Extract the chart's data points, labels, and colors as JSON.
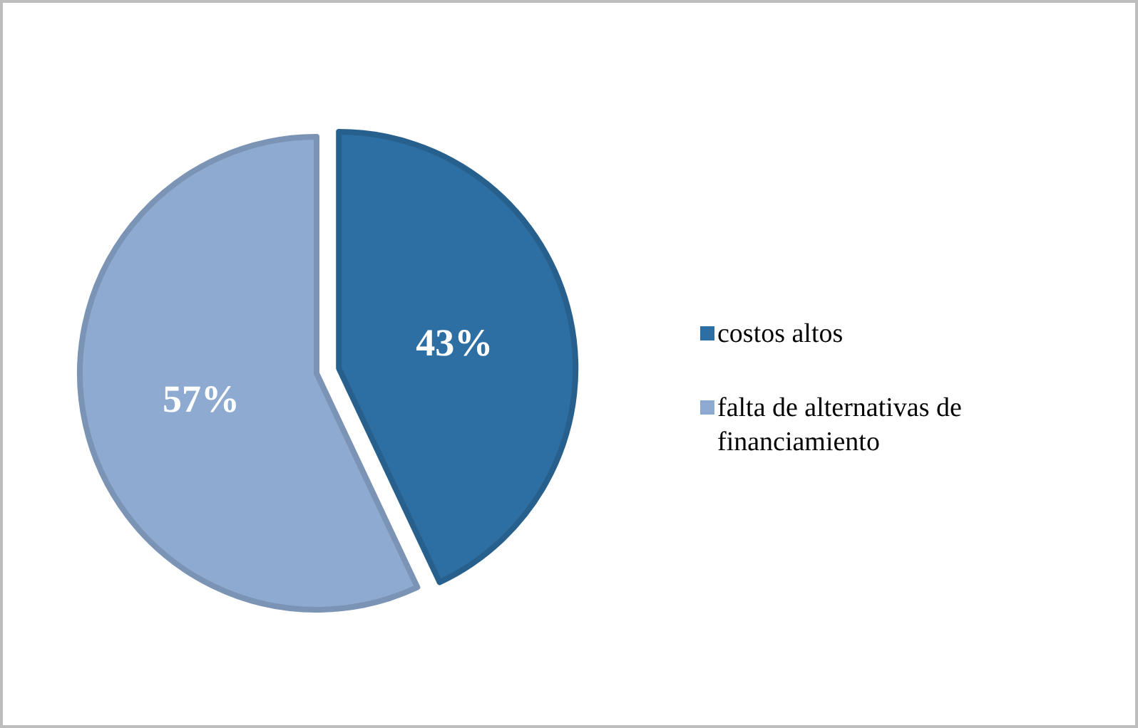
{
  "chart_data": {
    "type": "pie",
    "categories": [
      "costos altos",
      "falta de alternativas de financiamiento"
    ],
    "values": [
      43,
      57
    ],
    "colors": [
      "#2e6fa3",
      "#8eaad0"
    ],
    "value_labels": [
      "43%",
      "57%"
    ],
    "legend": "right"
  }
}
